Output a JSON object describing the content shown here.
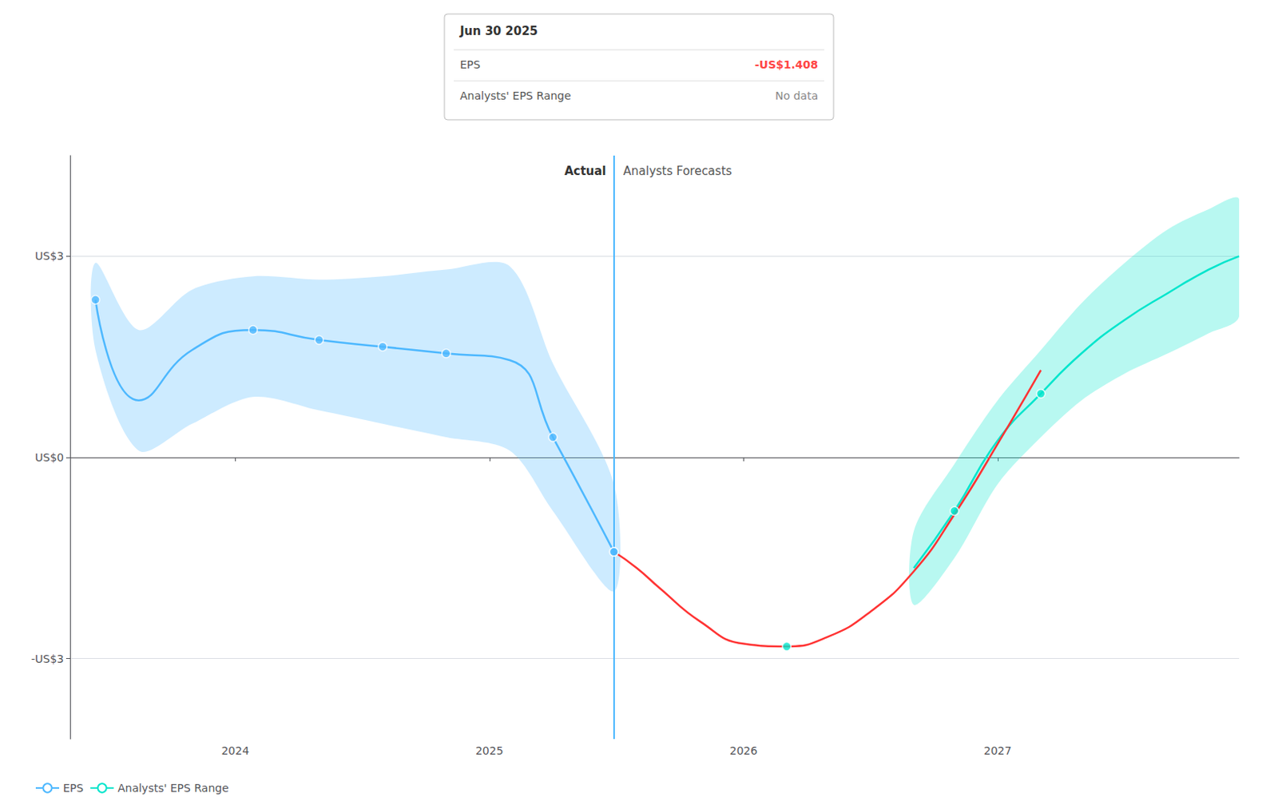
{
  "chart_data": {
    "type": "line",
    "xlim": [
      2023.35,
      2027.95
    ],
    "xticks": [
      2024,
      2025,
      2026,
      2027
    ],
    "ylim": [
      -4.2,
      4.5
    ],
    "yticks": [
      {
        "value": -3,
        "label": "-US$3"
      },
      {
        "value": 0,
        "label": "US$0"
      },
      {
        "value": 3,
        "label": "US$3"
      }
    ],
    "grid": true,
    "legend": "lower left",
    "series": [
      {
        "name": "EPS",
        "color": "#4db8ff",
        "x": [
          2023.45,
          2023.62,
          2023.83,
          2024.07,
          2024.33,
          2024.58,
          2024.83,
          2025.08,
          2025.25,
          2025.49
        ],
        "values": [
          2.35,
          0.85,
          1.6,
          1.9,
          1.75,
          1.65,
          1.55,
          1.45,
          0.3,
          -1.408
        ],
        "upper": [
          2.9,
          1.9,
          2.5,
          2.7,
          2.65,
          2.7,
          2.8,
          2.85,
          1.4,
          -0.4
        ],
        "lower": [
          1.6,
          0.1,
          0.5,
          0.9,
          0.7,
          0.5,
          0.3,
          0.1,
          -0.8,
          -2.0
        ]
      },
      {
        "name": "Analysts' EPS Range",
        "color": "#00e5cc",
        "x": [
          2026.67,
          2026.83,
          2027.0,
          2027.17,
          2027.33,
          2027.5,
          2027.67,
          2027.83,
          2027.95
        ],
        "values": [
          -1.65,
          -0.8,
          0.25,
          0.95,
          1.55,
          2.05,
          2.45,
          2.8,
          3.0
        ],
        "upper": [
          -1.1,
          -0.1,
          0.85,
          1.6,
          2.3,
          2.9,
          3.4,
          3.7,
          3.85
        ],
        "lower": [
          -2.2,
          -1.5,
          -0.4,
          0.3,
          0.85,
          1.25,
          1.55,
          1.85,
          2.1
        ]
      },
      {
        "color": "#ff3333",
        "x": [
          2025.49,
          2025.58,
          2025.67,
          2025.83,
          2026.0,
          2026.17,
          2026.33,
          2026.5,
          2026.67,
          2026.83,
          2027.0,
          2027.17
        ],
        "values": [
          -1.408,
          -1.65,
          -1.95,
          -2.45,
          -2.78,
          -2.82,
          -2.68,
          -2.3,
          -1.7,
          -0.85,
          0.2,
          1.3
        ]
      },
      {
        "type": "scatter",
        "color": "#4db8ff",
        "x": [
          2023.45,
          2024.07,
          2024.33,
          2024.58,
          2024.83,
          2025.25,
          2025.49
        ],
        "values": [
          2.35,
          1.9,
          1.75,
          1.65,
          1.55,
          0.3,
          -1.408
        ]
      },
      {
        "type": "scatter",
        "color": "#4db8ff",
        "x": [
          2025.49
        ],
        "values": [
          -1.408
        ]
      },
      {
        "type": "scatter",
        "color": "#00e5cc",
        "x": [
          2026.17
        ],
        "values": [
          -2.82
        ]
      },
      {
        "type": "scatter",
        "color": "#00e5cc",
        "x": [
          2026.83,
          2027.17
        ],
        "values": [
          -0.8,
          0.95
        ]
      }
    ],
    "divider": {
      "x": 2025.49,
      "color": "#4db8ff",
      "labels": [
        "Actual",
        "Analysts Forecasts"
      ]
    },
    "tooltip": {
      "title": "Jun 30 2025",
      "rows": [
        {
          "label": "EPS",
          "text": "-US$1.408",
          "color": "#ff4444"
        },
        {
          "label": "Analysts' EPS Range",
          "text": "No data"
        }
      ]
    }
  }
}
